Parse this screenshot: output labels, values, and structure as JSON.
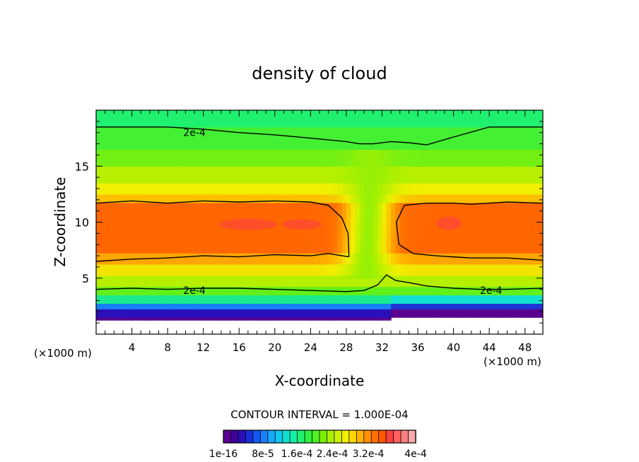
{
  "chart_data": {
    "type": "heatmap",
    "title": "density of cloud",
    "xlabel": "X-coordinate",
    "ylabel": "Z-coordinate",
    "x_unit": "(×1000 m)",
    "y_unit": "(×1000 m)",
    "xlim": [
      0,
      50
    ],
    "ylim": [
      0,
      20
    ],
    "x_ticks": [
      "4",
      "8",
      "12",
      "16",
      "20",
      "24",
      "28",
      "32",
      "36",
      "40",
      "44",
      "48"
    ],
    "y_ticks": [
      "5",
      "10",
      "15"
    ],
    "contour_interval_text": "CONTOUR INTERVAL = 1.000E-04",
    "contour_labels": [
      "2e-4",
      "2e-4",
      "2e-4"
    ],
    "colorbar": {
      "labels": [
        "1e-16",
        "8e-5",
        "1.6e-4",
        "2.4e-4",
        "3.2e-4",
        "4e-4"
      ],
      "colors": [
        "#5a0090",
        "#40009c",
        "#2a10b8",
        "#1830d8",
        "#1458f0",
        "#1a80ff",
        "#18a8f8",
        "#10c8f0",
        "#10e0d0",
        "#14f0a8",
        "#20f070",
        "#30f040",
        "#50f020",
        "#78f000",
        "#a8f000",
        "#d0f000",
        "#f0f000",
        "#ffd800",
        "#ffb400",
        "#ff9000",
        "#ff7000",
        "#ff5800",
        "#ff4040",
        "#ff6060",
        "#ff8080",
        "#f8a8a8"
      ]
    },
    "contours": [
      {
        "level": "2e-4",
        "x": [
          0,
          8,
          12,
          16,
          20,
          24,
          28,
          29.5,
          31,
          33,
          35,
          37,
          40,
          44,
          50
        ],
        "y": [
          18.5,
          18.5,
          18.3,
          18,
          17.8,
          17.5,
          17.2,
          17.0,
          17.0,
          17.2,
          17.1,
          16.9,
          17.6,
          18.5,
          18.5
        ]
      },
      {
        "level": "2e-4",
        "x": [
          0,
          4,
          8,
          12,
          16,
          20,
          24,
          26,
          27.5,
          28.2,
          28.3
        ],
        "y": [
          11.7,
          11.9,
          11.7,
          11.9,
          11.8,
          11.9,
          11.8,
          11.5,
          10.4,
          9.0,
          6.9
        ]
      },
      {
        "level": "2e-4",
        "x": [
          28.3,
          26,
          24,
          20,
          16,
          12,
          8,
          4,
          0
        ],
        "y": [
          6.9,
          7.2,
          7.0,
          7.1,
          6.9,
          7.0,
          6.8,
          6.7,
          6.5
        ]
      },
      {
        "level": "2e-4",
        "x": [
          50,
          46,
          42,
          40,
          37,
          34.5,
          33.6,
          33.9,
          35.5,
          38,
          42,
          46,
          50
        ],
        "y": [
          11.7,
          11.8,
          11.6,
          11.7,
          11.7,
          11.5,
          10,
          8.0,
          7.2,
          7.0,
          6.8,
          6.8,
          6.6
        ]
      },
      {
        "level": "2e-4",
        "x": [
          0,
          4,
          8,
          12,
          16,
          20,
          24,
          28,
          30,
          31.5,
          32.5,
          33.5,
          35,
          37,
          40,
          43,
          46,
          50
        ],
        "y": [
          4.0,
          4.1,
          4.0,
          4.1,
          4.1,
          4.0,
          3.9,
          3.8,
          3.9,
          4.4,
          5.3,
          4.8,
          4.6,
          4.3,
          4.1,
          4.0,
          4.0,
          4.1
        ]
      }
    ],
    "cloud_regions": [
      {
        "name": "left cloud layer",
        "x": [
          0,
          28
        ],
        "z": [
          6.5,
          12
        ],
        "peak": "3.2e-4"
      },
      {
        "name": "right cloud layer",
        "x": [
          34,
          50
        ],
        "z": [
          6.5,
          12
        ],
        "peak": "3.2e-4"
      }
    ]
  }
}
